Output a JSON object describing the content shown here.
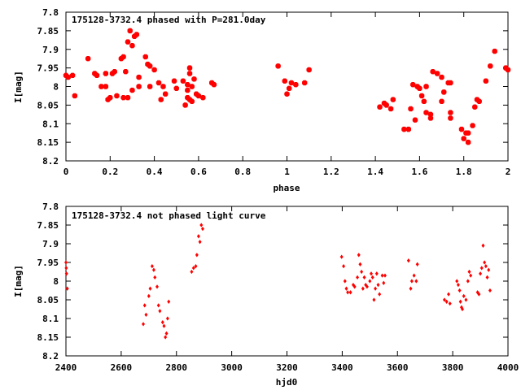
{
  "chart_data": [
    {
      "type": "scatter",
      "title": "175128-3732.4 phased with P=281.0day",
      "xlabel": "phase",
      "ylabel": "I[mag]",
      "xlim": [
        0,
        2
      ],
      "ylim": [
        7.8,
        8.2
      ],
      "y_inverted": true,
      "x_ticks": [
        "0",
        "0.2",
        "0.4",
        "0.6",
        "0.8",
        "1",
        "1.2",
        "1.4",
        "1.6",
        "1.8",
        "2"
      ],
      "y_ticks": [
        "7.8",
        "7.85",
        "7.9",
        "7.95",
        "8",
        "8.05",
        "8.1",
        "8.15",
        "8.2"
      ],
      "marker_color": "#ff0000",
      "series": [
        {
          "points": [
            [
              0.0,
              7.97
            ],
            [
              0.01,
              7.975
            ],
            [
              0.03,
              7.97
            ],
            [
              0.04,
              8.025
            ],
            [
              0.1,
              7.925
            ],
            [
              0.13,
              7.965
            ],
            [
              0.14,
              7.97
            ],
            [
              0.16,
              8.0
            ],
            [
              0.18,
              8.0
            ],
            [
              0.18,
              7.965
            ],
            [
              0.19,
              8.035
            ],
            [
              0.2,
              8.03
            ],
            [
              0.21,
              7.965
            ],
            [
              0.22,
              7.96
            ],
            [
              0.23,
              8.025
            ],
            [
              0.25,
              7.925
            ],
            [
              0.26,
              7.92
            ],
            [
              0.26,
              8.03
            ],
            [
              0.27,
              7.96
            ],
            [
              0.28,
              8.03
            ],
            [
              0.28,
              7.88
            ],
            [
              0.29,
              7.85
            ],
            [
              0.3,
              8.01
            ],
            [
              0.3,
              7.89
            ],
            [
              0.31,
              7.865
            ],
            [
              0.32,
              7.86
            ],
            [
              0.33,
              7.975
            ],
            [
              0.33,
              8.0
            ],
            [
              0.36,
              7.92
            ],
            [
              0.37,
              7.94
            ],
            [
              0.38,
              7.945
            ],
            [
              0.38,
              8.0
            ],
            [
              0.4,
              7.955
            ],
            [
              0.42,
              7.99
            ],
            [
              0.43,
              8.035
            ],
            [
              0.44,
              8.0
            ],
            [
              0.45,
              8.02
            ],
            [
              0.49,
              7.985
            ],
            [
              0.5,
              8.005
            ],
            [
              0.53,
              7.985
            ],
            [
              0.54,
              8.05
            ],
            [
              0.55,
              7.995
            ],
            [
              0.55,
              8.03
            ],
            [
              0.55,
              8.01
            ],
            [
              0.56,
              7.95
            ],
            [
              0.56,
              7.965
            ],
            [
              0.56,
              8.035
            ],
            [
              0.57,
              8.04
            ],
            [
              0.57,
              8.0
            ],
            [
              0.58,
              7.98
            ],
            [
              0.59,
              8.02
            ],
            [
              0.6,
              8.025
            ],
            [
              0.62,
              8.03
            ],
            [
              0.66,
              7.99
            ],
            [
              0.67,
              7.995
            ],
            [
              0.96,
              7.945
            ],
            [
              0.99,
              7.985
            ],
            [
              1.0,
              8.02
            ],
            [
              1.01,
              8.005
            ],
            [
              1.02,
              7.99
            ],
            [
              1.04,
              7.995
            ],
            [
              1.08,
              7.99
            ],
            [
              1.1,
              7.955
            ],
            [
              1.42,
              8.055
            ],
            [
              1.44,
              8.045
            ],
            [
              1.45,
              8.05
            ],
            [
              1.47,
              8.06
            ],
            [
              1.48,
              8.035
            ],
            [
              1.53,
              8.115
            ],
            [
              1.55,
              8.115
            ],
            [
              1.56,
              8.06
            ],
            [
              1.57,
              7.995
            ],
            [
              1.58,
              8.09
            ],
            [
              1.59,
              8.0
            ],
            [
              1.6,
              8.005
            ],
            [
              1.61,
              8.025
            ],
            [
              1.62,
              8.04
            ],
            [
              1.63,
              8.0
            ],
            [
              1.63,
              8.07
            ],
            [
              1.65,
              8.085
            ],
            [
              1.65,
              8.075
            ],
            [
              1.66,
              7.96
            ],
            [
              1.68,
              7.965
            ],
            [
              1.7,
              8.04
            ],
            [
              1.7,
              7.975
            ],
            [
              1.71,
              8.015
            ],
            [
              1.73,
              7.99
            ],
            [
              1.74,
              8.07
            ],
            [
              1.74,
              8.085
            ],
            [
              1.74,
              7.99
            ],
            [
              1.79,
              8.115
            ],
            [
              1.8,
              8.14
            ],
            [
              1.81,
              8.125
            ],
            [
              1.82,
              8.15
            ],
            [
              1.82,
              8.125
            ],
            [
              1.84,
              8.105
            ],
            [
              1.85,
              8.055
            ],
            [
              1.86,
              8.035
            ],
            [
              1.87,
              8.04
            ],
            [
              1.9,
              7.985
            ],
            [
              1.92,
              7.945
            ],
            [
              1.94,
              7.905
            ],
            [
              1.99,
              7.95
            ],
            [
              2.0,
              7.955
            ]
          ]
        }
      ]
    },
    {
      "type": "scatter",
      "title": "175128-3732.4 not phased light curve",
      "xlabel": "hjd0",
      "ylabel": "I[mag]",
      "xlim": [
        2400,
        4000
      ],
      "ylim": [
        7.8,
        8.2
      ],
      "y_inverted": true,
      "x_ticks": [
        "2400",
        "2600",
        "2800",
        "3000",
        "3200",
        "3400",
        "3600",
        "3800",
        "4000"
      ],
      "y_ticks": [
        "7.8",
        "7.85",
        "7.9",
        "7.95",
        "8",
        "8.05",
        "8.1",
        "8.15",
        "8.2"
      ],
      "marker_color": "#ff0000",
      "series": [
        {
          "points": [
            [
              2400,
              7.95
            ],
            [
              2401,
              7.965
            ],
            [
              2402,
              7.98
            ],
            [
              2405,
              8.02
            ],
            [
              2680,
              8.115
            ],
            [
              2685,
              8.065
            ],
            [
              2690,
              8.09
            ],
            [
              2700,
              8.04
            ],
            [
              2705,
              8.02
            ],
            [
              2712,
              7.96
            ],
            [
              2718,
              7.97
            ],
            [
              2722,
              7.99
            ],
            [
              2730,
              8.015
            ],
            [
              2735,
              8.065
            ],
            [
              2740,
              8.08
            ],
            [
              2750,
              8.11
            ],
            [
              2755,
              8.12
            ],
            [
              2760,
              8.15
            ],
            [
              2764,
              8.14
            ],
            [
              2768,
              8.1
            ],
            [
              2772,
              8.055
            ],
            [
              2855,
              7.975
            ],
            [
              2862,
              7.965
            ],
            [
              2870,
              7.96
            ],
            [
              2874,
              7.93
            ],
            [
              2880,
              7.88
            ],
            [
              2885,
              7.895
            ],
            [
              2890,
              7.85
            ],
            [
              2895,
              7.86
            ],
            [
              3398,
              7.935
            ],
            [
              3405,
              7.96
            ],
            [
              3410,
              8.0
            ],
            [
              3415,
              8.02
            ],
            [
              3420,
              8.03
            ],
            [
              3430,
              8.03
            ],
            [
              3440,
              8.01
            ],
            [
              3445,
              8.015
            ],
            [
              3455,
              7.99
            ],
            [
              3460,
              7.93
            ],
            [
              3465,
              7.955
            ],
            [
              3470,
              7.975
            ],
            [
              3475,
              8.02
            ],
            [
              3480,
              7.99
            ],
            [
              3485,
              8.01
            ],
            [
              3490,
              8.015
            ],
            [
              3500,
              8.0
            ],
            [
              3505,
              7.98
            ],
            [
              3510,
              7.99
            ],
            [
              3515,
              8.05
            ],
            [
              3520,
              8.02
            ],
            [
              3525,
              7.98
            ],
            [
              3530,
              8.01
            ],
            [
              3535,
              8.035
            ],
            [
              3545,
              7.985
            ],
            [
              3550,
              8.005
            ],
            [
              3555,
              7.985
            ],
            [
              3640,
              7.945
            ],
            [
              3648,
              8.02
            ],
            [
              3652,
              8.0
            ],
            [
              3660,
              7.985
            ],
            [
              3668,
              8.0
            ],
            [
              3672,
              7.955
            ],
            [
              3770,
              8.05
            ],
            [
              3778,
              8.055
            ],
            [
              3785,
              8.035
            ],
            [
              3790,
              8.06
            ],
            [
              3815,
              8.0
            ],
            [
              3820,
              8.01
            ],
            [
              3825,
              8.025
            ],
            [
              3828,
              8.055
            ],
            [
              3832,
              8.07
            ],
            [
              3835,
              8.075
            ],
            [
              3840,
              8.04
            ],
            [
              3848,
              8.05
            ],
            [
              3855,
              8.0
            ],
            [
              3860,
              7.975
            ],
            [
              3865,
              7.985
            ],
            [
              3890,
              8.03
            ],
            [
              3895,
              8.035
            ],
            [
              3900,
              7.98
            ],
            [
              3905,
              7.965
            ],
            [
              3910,
              7.905
            ],
            [
              3915,
              7.95
            ],
            [
              3920,
              7.96
            ],
            [
              3925,
              7.99
            ],
            [
              3930,
              7.97
            ],
            [
              3935,
              8.025
            ]
          ]
        }
      ]
    }
  ]
}
